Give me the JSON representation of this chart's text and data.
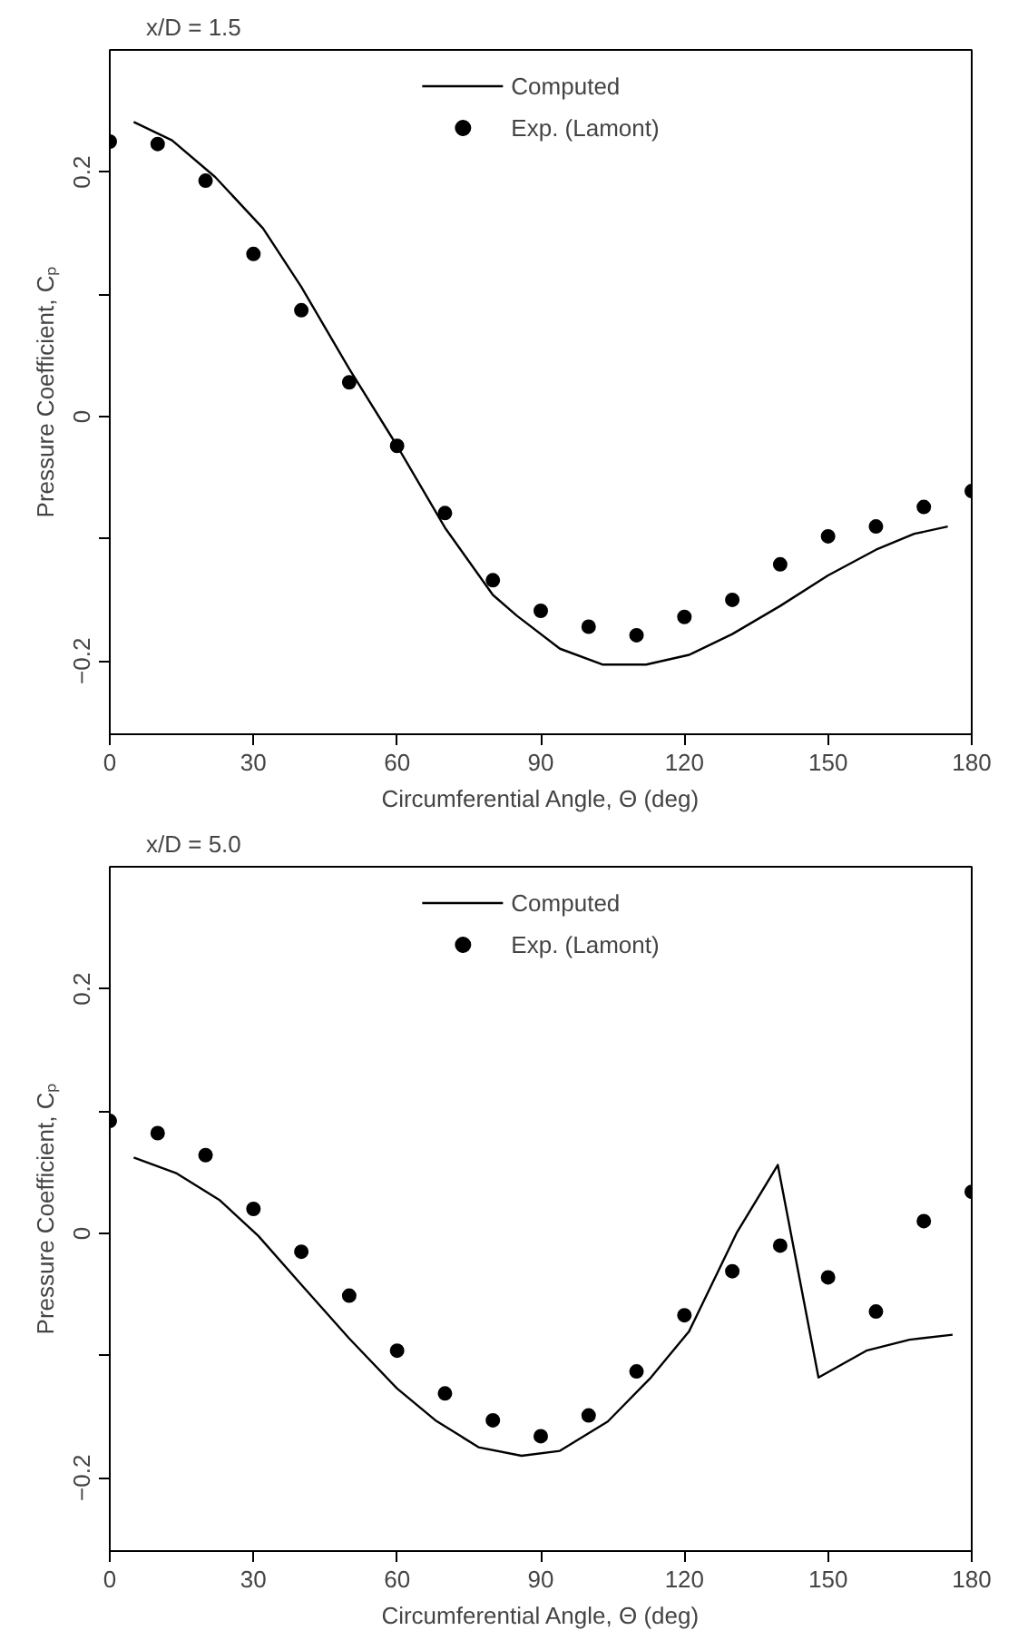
{
  "chart_data": [
    {
      "type": "line",
      "title": "x/D = 1.5",
      "xlabel": "Circumferential Angle, Θ (deg)",
      "ylabel": "Pressure Coefficient, Cₚ",
      "xlim": [
        0,
        180
      ],
      "ylim": [
        -0.26,
        0.3
      ],
      "xticks": [
        0,
        30,
        60,
        90,
        120,
        150,
        180
      ],
      "yticks": [
        {
          "value": -0.2,
          "label": "−0.2"
        },
        {
          "value": -0.1,
          "label": null
        },
        0,
        {
          "value": 0.1,
          "label": null
        },
        0.2
      ],
      "grid": false,
      "legend": "top",
      "series": [
        {
          "name": "Computed",
          "type": "line",
          "color": "#000000",
          "line_style": "solid",
          "marker": "none",
          "x": [
            5,
            13,
            22,
            32,
            40,
            50,
            60,
            70,
            80,
            85,
            94,
            103,
            112,
            121,
            130,
            140,
            150,
            160,
            168,
            175
          ],
          "values": [
            0.241,
            0.226,
            0.196,
            0.154,
            0.106,
            0.039,
            -0.024,
            -0.091,
            -0.146,
            -0.163,
            -0.19,
            -0.203,
            -0.203,
            -0.195,
            -0.178,
            -0.155,
            -0.13,
            -0.109,
            -0.096,
            -0.09
          ]
        },
        {
          "name": "Exp. (Lamont)",
          "type": "scatter",
          "color": "#000000",
          "marker": "circle",
          "x": [
            0,
            10,
            20,
            30,
            40,
            50,
            60,
            70,
            80,
            90,
            100,
            110,
            120,
            130,
            140,
            150,
            160,
            170,
            180
          ],
          "values": [
            0.225,
            0.223,
            0.193,
            0.133,
            0.087,
            0.028,
            -0.024,
            -0.079,
            -0.134,
            -0.159,
            -0.172,
            -0.179,
            -0.164,
            -0.15,
            -0.121,
            -0.098,
            -0.09,
            -0.074,
            -0.061
          ]
        }
      ]
    },
    {
      "type": "line",
      "title": "x/D = 5.0",
      "xlabel": "Circumferential Angle, Θ (deg)",
      "ylabel": "Pressure Coefficient, Cₚ",
      "xlim": [
        0,
        180
      ],
      "ylim": [
        -0.26,
        0.3
      ],
      "xticks": [
        0,
        30,
        60,
        90,
        120,
        150,
        180
      ],
      "yticks": [
        {
          "value": -0.2,
          "label": "−0.2"
        },
        {
          "value": -0.1,
          "label": null
        },
        0,
        {
          "value": 0.1,
          "label": null
        },
        0.2
      ],
      "grid": false,
      "legend": "top",
      "series": [
        {
          "name": "Computed",
          "type": "line",
          "color": "#000000",
          "line_style": "solid",
          "marker": "none",
          "x": [
            5,
            14,
            23,
            31,
            40,
            50,
            60,
            68,
            77,
            86,
            94,
            104,
            113,
            121,
            131,
            139.5,
            148,
            158,
            167,
            176
          ],
          "values": [
            0.062,
            0.049,
            0.027,
            -0.002,
            -0.042,
            -0.086,
            -0.127,
            -0.153,
            -0.175,
            -0.182,
            -0.178,
            -0.154,
            -0.118,
            -0.08,
            0.001,
            0.056,
            -0.118,
            -0.096,
            -0.087,
            -0.083
          ]
        },
        {
          "name": "Exp. (Lamont)",
          "type": "scatter",
          "color": "#000000",
          "marker": "circle",
          "x": [
            0,
            10,
            20,
            30,
            40,
            50,
            60,
            70,
            80,
            90,
            100,
            110,
            120,
            130,
            140,
            150,
            160,
            170,
            180
          ],
          "values": [
            0.092,
            0.082,
            0.064,
            0.02,
            -0.015,
            -0.051,
            -0.096,
            -0.131,
            -0.153,
            -0.166,
            -0.149,
            -0.113,
            -0.067,
            -0.031,
            -0.01,
            -0.036,
            -0.064,
            0.01,
            0.034
          ]
        }
      ]
    }
  ]
}
